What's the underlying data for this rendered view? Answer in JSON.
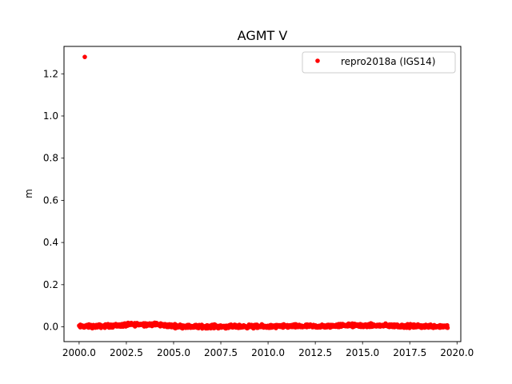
{
  "chart_data": {
    "type": "scatter",
    "title": "AGMT V",
    "xlabel": "",
    "ylabel": "m",
    "xlim": [
      1999.2,
      2020.2
    ],
    "ylim": [
      -0.07,
      1.33
    ],
    "xticks": [
      2000.0,
      2002.5,
      2005.0,
      2007.5,
      2010.0,
      2012.5,
      2015.0,
      2017.5,
      2020.0
    ],
    "xtick_labels": [
      "2000.0",
      "2002.5",
      "2005.0",
      "2007.5",
      "2010.0",
      "2012.5",
      "2015.0",
      "2017.5",
      "2020.0"
    ],
    "yticks": [
      0.0,
      0.2,
      0.4,
      0.6,
      0.8,
      1.0,
      1.2
    ],
    "ytick_labels": [
      "0.0",
      "0.2",
      "0.4",
      "0.6",
      "0.8",
      "1.0",
      "1.2"
    ],
    "grid": false,
    "legend_position": "top-right",
    "series": [
      {
        "name": "repro2018a (IGS14)",
        "color": "#ff0000",
        "marker": "circle",
        "outliers": [
          {
            "x": 2000.3,
            "y": 1.28
          }
        ],
        "x_range": [
          2000.0,
          2019.5
        ],
        "baseline_points": [
          {
            "x": 2000.0,
            "y": 0.002
          },
          {
            "x": 2001.0,
            "y": 0.003
          },
          {
            "x": 2002.0,
            "y": 0.006
          },
          {
            "x": 2003.0,
            "y": 0.012
          },
          {
            "x": 2004.0,
            "y": 0.012
          },
          {
            "x": 2005.0,
            "y": 0.004
          },
          {
            "x": 2006.0,
            "y": 0.001
          },
          {
            "x": 2007.0,
            "y": 0.002
          },
          {
            "x": 2008.0,
            "y": 0.001
          },
          {
            "x": 2009.0,
            "y": 0.002
          },
          {
            "x": 2010.0,
            "y": 0.001
          },
          {
            "x": 2011.0,
            "y": 0.003
          },
          {
            "x": 2012.0,
            "y": 0.003
          },
          {
            "x": 2013.0,
            "y": 0.002
          },
          {
            "x": 2014.0,
            "y": 0.008
          },
          {
            "x": 2015.0,
            "y": 0.006
          },
          {
            "x": 2016.0,
            "y": 0.006
          },
          {
            "x": 2017.0,
            "y": 0.004
          },
          {
            "x": 2018.0,
            "y": 0.003
          },
          {
            "x": 2019.0,
            "y": 0.003
          },
          {
            "x": 2019.5,
            "y": 0.002
          }
        ],
        "noise_amplitude": 0.008
      }
    ]
  }
}
